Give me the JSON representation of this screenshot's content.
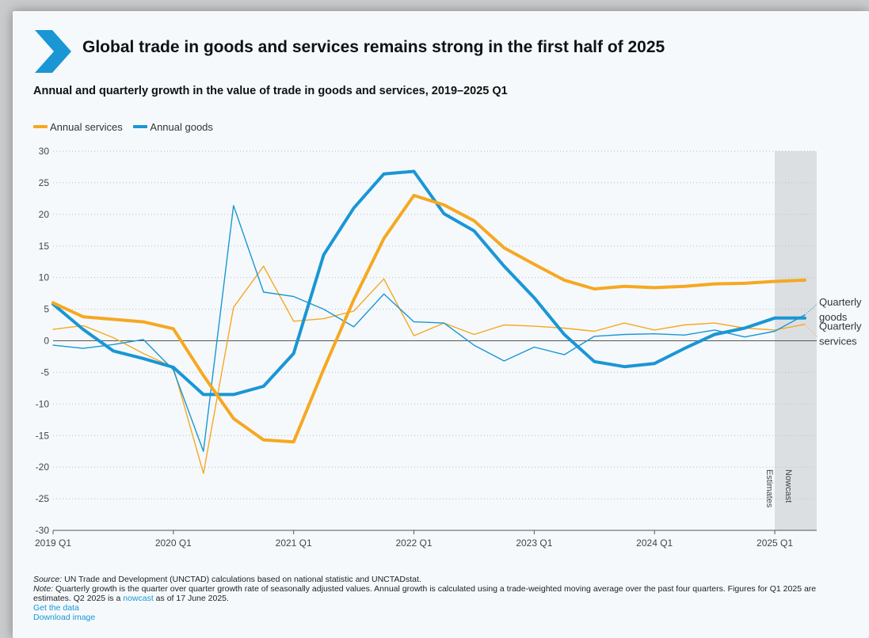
{
  "header": {
    "title": "Global trade in goods and services remains strong in the first half of 2025",
    "subtitle": "Annual and quarterly growth in the value of trade in goods and services, 2019–2025 Q1"
  },
  "colors": {
    "annual_services": "#f6a821",
    "annual_goods": "#1a96d4",
    "quarterly_services": "#f6a821",
    "quarterly_goods": "#1a96d4",
    "chevron": "#1a96d4",
    "nowcast_band": "#dcdfe2"
  },
  "chart_data": {
    "type": "line",
    "ylim": [
      -30,
      30
    ],
    "y_ticks": [
      30,
      25,
      20,
      15,
      10,
      5,
      0,
      -5,
      -10,
      -15,
      -20,
      -25,
      -30
    ],
    "x_quarters": [
      "2019 Q1",
      "2019 Q2",
      "2019 Q3",
      "2019 Q4",
      "2020 Q1",
      "2020 Q2",
      "2020 Q3",
      "2020 Q4",
      "2021 Q1",
      "2021 Q2",
      "2021 Q3",
      "2021 Q4",
      "2022 Q1",
      "2022 Q2",
      "2022 Q3",
      "2022 Q4",
      "2023 Q1",
      "2023 Q2",
      "2023 Q3",
      "2023 Q4",
      "2024 Q1",
      "2024 Q2",
      "2024 Q3",
      "2024 Q4",
      "2025 Q1",
      "2025 Q2"
    ],
    "x_tick_labels": [
      "2019 Q1",
      "2020 Q1",
      "2021 Q1",
      "2022 Q1",
      "2023 Q1",
      "2024 Q1",
      "2025 Q1"
    ],
    "legend": [
      "Annual services",
      "Annual goods"
    ],
    "legend_position": "top-left",
    "grid": "horizontal dotted",
    "series": [
      {
        "name": "Annual services",
        "style": "thick",
        "values": [
          6.0,
          3.8,
          3.4,
          3.0,
          1.9,
          -5.5,
          -12.3,
          -15.7,
          -16.0,
          -4.5,
          6.5,
          16.2,
          23.0,
          21.5,
          19.0,
          14.7,
          12.1,
          9.6,
          8.2,
          8.6,
          8.4,
          8.6,
          9.0,
          9.1,
          9.4,
          9.6
        ]
      },
      {
        "name": "Annual goods",
        "style": "thick",
        "values": [
          5.8,
          1.8,
          -1.6,
          -2.8,
          -4.2,
          -8.5,
          -8.5,
          -7.2,
          -2.0,
          13.6,
          21.0,
          26.4,
          26.8,
          20.1,
          17.4,
          11.8,
          6.8,
          1.0,
          -3.3,
          -4.1,
          -3.6,
          -1.2,
          1.0,
          2.0,
          3.6,
          3.6
        ]
      },
      {
        "name": "Quarterly services",
        "style": "thin",
        "values": [
          1.8,
          2.4,
          0.5,
          -2.0,
          -4.2,
          -21.0,
          5.3,
          11.8,
          3.1,
          3.5,
          4.7,
          9.8,
          0.8,
          2.8,
          1.0,
          2.5,
          2.3,
          2.0,
          1.5,
          2.8,
          1.7,
          2.5,
          2.8,
          2.0,
          1.7,
          2.6
        ]
      },
      {
        "name": "Quarterly goods",
        "style": "thin",
        "values": [
          -0.7,
          -1.2,
          -0.6,
          0.2,
          -4.6,
          -17.5,
          21.4,
          7.7,
          7.0,
          5.0,
          2.2,
          7.4,
          3.0,
          2.8,
          -0.7,
          -3.2,
          -1.0,
          -2.2,
          0.7,
          1.0,
          1.1,
          0.9,
          1.7,
          0.6,
          1.5,
          4.1
        ]
      }
    ],
    "annotations": {
      "end_label_goods": "Quarterly\ngoods",
      "end_label_services": "Quarterly\nservices",
      "estimates": "Estimates",
      "nowcast": "Nowcast"
    }
  },
  "footer": {
    "source_label": "Source:",
    "source_text": " UN Trade and Development (UNCTAD) calculations based on national statistic and UNCTADstat.",
    "note_label": "Note:",
    "note_text": " Quarterly growth is the quarter over quarter growth rate of seasonally adjusted values. Annual growth is calculated using a trade-weighted moving average over the past four quarters. Figures for Q1 2025 are estimates. Q2 2025 is a ",
    "nowcast_link": "nowcast",
    "note_text_end": " as of 17 June 2025.",
    "get_data": "Get the data",
    "download_image": "Download image"
  }
}
